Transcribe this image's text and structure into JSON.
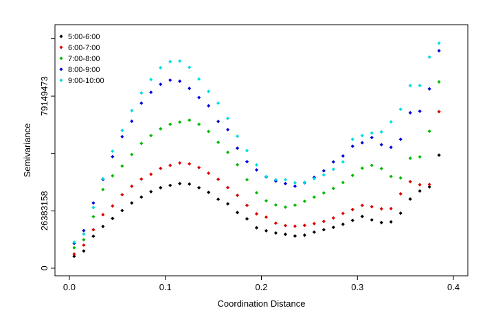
{
  "chart_data": {
    "type": "scatter",
    "xlabel": "Coordination Distance",
    "ylabel": "Semivariance",
    "xlim": [
      -0.015,
      0.415
    ],
    "ylim": [
      -3500000,
      112000000
    ],
    "xticks": [
      0.0,
      0.1,
      0.2,
      0.3,
      0.4
    ],
    "xtick_labels": [
      "0.0",
      "0.1",
      "0.2",
      "0.3",
      "0.4"
    ],
    "yticks": [
      0,
      26383158,
      52766315,
      79149473,
      105532630
    ],
    "ytick_labels": [
      "0",
      "26383158",
      "",
      "79149473",
      ""
    ],
    "grid": false,
    "legend_position": "top-left",
    "x": [
      0.005,
      0.015,
      0.025,
      0.035,
      0.045,
      0.055,
      0.065,
      0.075,
      0.085,
      0.095,
      0.105,
      0.115,
      0.125,
      0.135,
      0.145,
      0.155,
      0.165,
      0.175,
      0.185,
      0.195,
      0.205,
      0.215,
      0.225,
      0.235,
      0.245,
      0.255,
      0.265,
      0.275,
      0.285,
      0.295,
      0.305,
      0.315,
      0.325,
      0.335,
      0.345,
      0.355,
      0.365,
      0.375,
      0.385
    ],
    "series": [
      {
        "name": "5:00-6:00",
        "color": "#000000",
        "values": [
          5500000,
          7900000,
          14700000,
          19200000,
          22900000,
          26500000,
          30000000,
          32700000,
          35200000,
          37000000,
          38100000,
          38900000,
          38700000,
          37000000,
          34900000,
          31700000,
          29600000,
          25600000,
          22700000,
          18600000,
          17200000,
          16200000,
          15600000,
          14800000,
          15200000,
          16600000,
          17700000,
          18800000,
          20200000,
          22000000,
          23800000,
          22200000,
          21000000,
          21300000,
          25300000,
          31800000,
          35500000,
          37400000,
          52000000
        ]
      },
      {
        "name": "6:00-7:00",
        "color": "#dd0000",
        "values": [
          6500000,
          10600000,
          17700000,
          24600000,
          28600000,
          33800000,
          37700000,
          41000000,
          43200000,
          45900000,
          47300000,
          48400000,
          48000000,
          46300000,
          43700000,
          40900000,
          37100000,
          33500000,
          28900000,
          25000000,
          23500000,
          20700000,
          19600000,
          19300000,
          19700000,
          20500000,
          21500000,
          23100000,
          25200000,
          27000000,
          28900000,
          28300000,
          27300000,
          27400000,
          34200000,
          39800000,
          38400000,
          38500000,
          72000000
        ]
      },
      {
        "name": "7:00-8:00",
        "color": "#00bb00",
        "values": [
          9400000,
          13100000,
          23700000,
          36200000,
          42500000,
          47000000,
          52300000,
          57400000,
          61000000,
          64100000,
          66200000,
          67200000,
          68100000,
          66200000,
          62900000,
          57900000,
          53300000,
          47600000,
          40700000,
          34700000,
          31000000,
          29100000,
          28100000,
          29000000,
          30800000,
          32700000,
          34600000,
          36700000,
          39400000,
          42700000,
          46000000,
          47300000,
          45800000,
          42200000,
          41500000,
          50600000,
          51200000,
          63000000,
          85700000
        ]
      },
      {
        "name": "8:00-9:00",
        "color": "#0000dd",
        "values": [
          11400000,
          17300000,
          30000000,
          40800000,
          51300000,
          60500000,
          67600000,
          75900000,
          80900000,
          84600000,
          86500000,
          86000000,
          82700000,
          78500000,
          74700000,
          67500000,
          63700000,
          55200000,
          49000000,
          45200000,
          42000000,
          40100000,
          38900000,
          37700000,
          39300000,
          41800000,
          44800000,
          48900000,
          51600000,
          56100000,
          57700000,
          60100000,
          56800000,
          55600000,
          59300000,
          71500000,
          72200000,
          82500000,
          100000000
        ]
      },
      {
        "name": "9:00-10:00",
        "color": "#00dddd",
        "values": [
          12000000,
          15700000,
          27900000,
          41200000,
          53800000,
          63400000,
          72500000,
          80600000,
          86800000,
          92200000,
          95000000,
          95300000,
          92400000,
          87000000,
          81300000,
          75900000,
          68900000,
          60700000,
          54100000,
          47500000,
          42200000,
          40700000,
          40700000,
          39300000,
          39500000,
          41200000,
          42900000,
          45500000,
          48900000,
          59300000,
          61000000,
          62200000,
          62700000,
          67300000,
          73100000,
          84000000,
          84000000,
          97100000,
          103500000
        ]
      }
    ]
  }
}
